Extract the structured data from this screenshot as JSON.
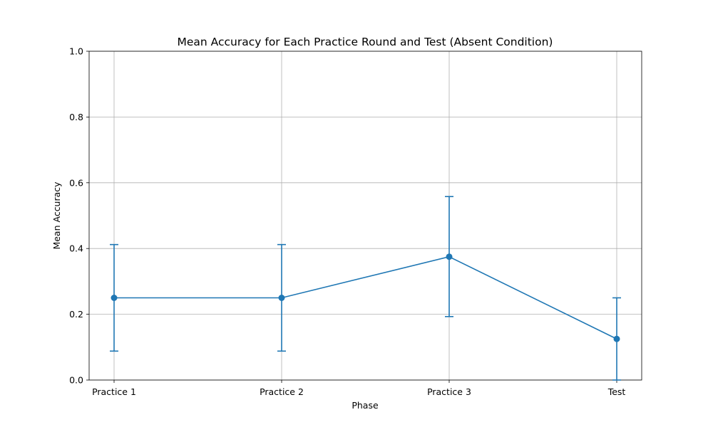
{
  "chart_data": {
    "type": "line",
    "title": "Mean Accuracy for Each Practice Round and Test (Absent Condition)",
    "xlabel": "Phase",
    "ylabel": "Mean Accuracy",
    "categories": [
      "Practice 1",
      "Practice 2",
      "Practice 3",
      "Test"
    ],
    "series": [
      {
        "name": "Mean Accuracy",
        "values": [
          0.25,
          0.25,
          0.375,
          0.125
        ],
        "error_low": [
          0.088,
          0.088,
          0.193,
          0.0
        ],
        "error_high": [
          0.412,
          0.412,
          0.558,
          0.25
        ]
      }
    ],
    "ylim": [
      0,
      1.0
    ],
    "yticks": [
      "0.0",
      "0.2",
      "0.4",
      "0.6",
      "0.8",
      "1.0"
    ],
    "grid": true,
    "color": "#1f77b4"
  }
}
